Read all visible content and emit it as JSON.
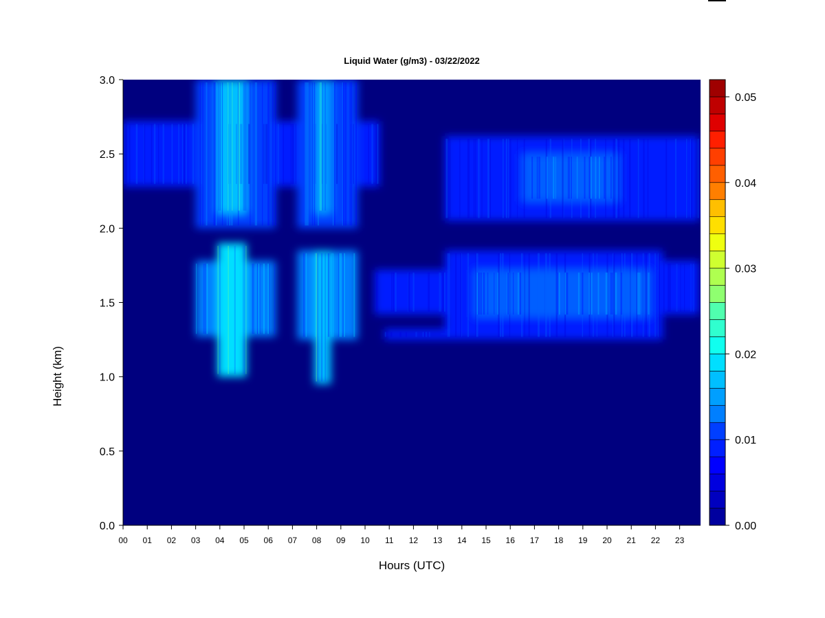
{
  "chart_data": {
    "type": "heatmap",
    "title": "Liquid Water (g/m3) - 03/22/2022",
    "xlabel": "Hours (UTC)",
    "ylabel": "Height (km)",
    "x_ticks": [
      "00",
      "01",
      "02",
      "03",
      "04",
      "05",
      "06",
      "07",
      "08",
      "09",
      "10",
      "11",
      "12",
      "13",
      "14",
      "15",
      "16",
      "17",
      "18",
      "19",
      "20",
      "21",
      "22",
      "23"
    ],
    "x_range": [
      0,
      23.8
    ],
    "y_ticks": [
      "0.0",
      "0.5",
      "1.0",
      "1.5",
      "2.0",
      "2.5",
      "3.0"
    ],
    "y_range": [
      0,
      3.0
    ],
    "colorbar": {
      "ticks": [
        "0.00",
        "0.01",
        "0.02",
        "0.03",
        "0.04",
        "0.05"
      ],
      "range": [
        0,
        0.052
      ],
      "levels": 26,
      "colors": [
        "#00007f",
        "#00009f",
        "#0000bf",
        "#0000df",
        "#0000ff",
        "#001fff",
        "#003fff",
        "#005fff",
        "#007fff",
        "#009fff",
        "#00bfff",
        "#00dfff",
        "#10ffef",
        "#30ffcf",
        "#50ffaf",
        "#70ff8f",
        "#8fff70",
        "#afff50",
        "#cfff30",
        "#efff10",
        "#ffdf00",
        "#ffbf00",
        "#ff9f00",
        "#ff7f00",
        "#ff5f00",
        "#ff3f00",
        "#ff1f00",
        "#df0000",
        "#bf0000",
        "#9f0000",
        "#7f0000"
      ]
    },
    "cloud_regions": [
      {
        "x": [
          0.0,
          10.6
        ],
        "y": [
          2.28,
          2.72
        ],
        "value": 0.009
      },
      {
        "x": [
          3.0,
          6.3
        ],
        "y": [
          2.0,
          3.0
        ],
        "value": 0.011
      },
      {
        "x": [
          3.9,
          5.1
        ],
        "y": [
          2.1,
          3.0
        ],
        "value": 0.017
      },
      {
        "x": [
          7.2,
          9.7
        ],
        "y": [
          2.0,
          3.0
        ],
        "value": 0.011
      },
      {
        "x": [
          7.9,
          8.6
        ],
        "y": [
          2.1,
          3.0
        ],
        "value": 0.016
      },
      {
        "x": [
          13.3,
          23.8
        ],
        "y": [
          2.05,
          2.62
        ],
        "value": 0.009
      },
      {
        "x": [
          16.5,
          20.5
        ],
        "y": [
          2.18,
          2.5
        ],
        "value": 0.012
      },
      {
        "x": [
          3.0,
          6.3
        ],
        "y": [
          1.27,
          1.78
        ],
        "value": 0.013
      },
      {
        "x": [
          3.9,
          5.1
        ],
        "y": [
          1.0,
          1.9
        ],
        "value": 0.019
      },
      {
        "x": [
          7.2,
          9.7
        ],
        "y": [
          1.25,
          1.85
        ],
        "value": 0.013
      },
      {
        "x": [
          7.9,
          8.6
        ],
        "y": [
          0.95,
          1.85
        ],
        "value": 0.018
      },
      {
        "x": [
          10.4,
          13.3
        ],
        "y": [
          1.42,
          1.72
        ],
        "value": 0.009
      },
      {
        "x": [
          10.8,
          13.3
        ],
        "y": [
          1.25,
          1.32
        ],
        "value": 0.008
      },
      {
        "x": [
          13.3,
          22.3
        ],
        "y": [
          1.25,
          1.85
        ],
        "value": 0.009
      },
      {
        "x": [
          22.3,
          23.8
        ],
        "y": [
          1.42,
          1.78
        ],
        "value": 0.008
      },
      {
        "x": [
          14.5,
          21.8
        ],
        "y": [
          1.4,
          1.72
        ],
        "value": 0.012
      }
    ]
  }
}
